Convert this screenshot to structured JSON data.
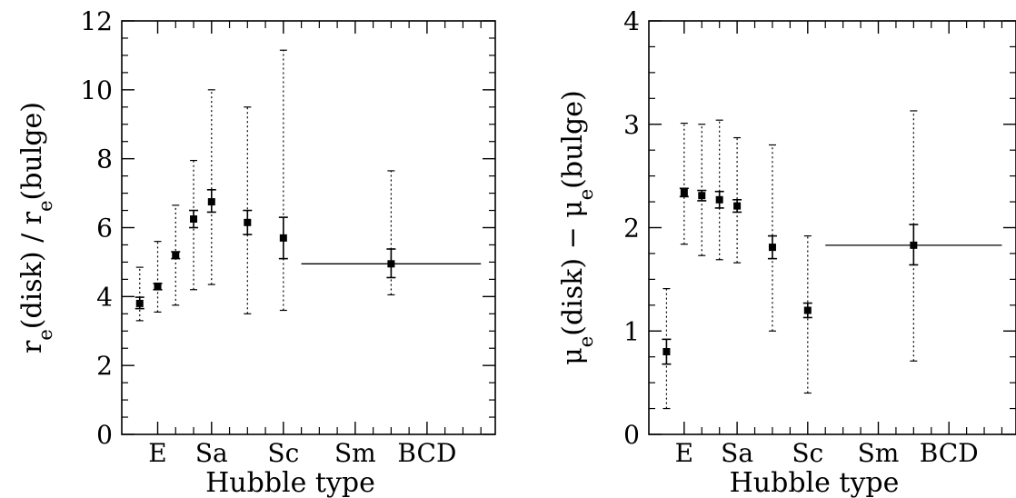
{
  "chart_data": [
    {
      "type": "scatter",
      "xlabel": "Hubble type",
      "ylabel": "r_e(disk) / r_e(bulge)",
      "ylabel_parts": [
        "r",
        "e",
        "(disk)  /  r",
        "e",
        "(bulge)"
      ],
      "ylim": [
        0,
        12
      ],
      "yticks": [
        0,
        2,
        4,
        6,
        8,
        10,
        12
      ],
      "xlim": [
        -1,
        9.4
      ],
      "x_tick_labels": [
        "E",
        "Sa",
        "Sc",
        "Sm",
        "BCD"
      ],
      "x_tick_label_positions": [
        0,
        1.5,
        3.5,
        5.5,
        7.5
      ],
      "x_minor_ticks": [
        0.5,
        1,
        2,
        2.5,
        3,
        4,
        4.5,
        5,
        6,
        6.5,
        7,
        8,
        8.5,
        9
      ],
      "x_major_ticks": [
        0,
        1.5,
        3.5,
        5.5,
        7.5
      ],
      "grid": false,
      "series": [
        {
          "x": [
            -0.5,
            0,
            0.5,
            1,
            1.5,
            2.5,
            3.5,
            6.5
          ],
          "y": [
            3.8,
            4.3,
            5.2,
            6.25,
            6.75,
            6.15,
            5.7,
            4.95
          ],
          "err_low": [
            3.65,
            4.2,
            5.1,
            6.0,
            6.45,
            5.8,
            5.1,
            4.55
          ],
          "err_high": [
            3.98,
            4.38,
            5.3,
            6.5,
            7.1,
            6.5,
            6.3,
            5.38
          ],
          "range_low": [
            3.3,
            3.55,
            3.75,
            4.2,
            4.35,
            3.5,
            3.6,
            4.05
          ],
          "range_high": [
            4.85,
            5.6,
            6.65,
            7.95,
            10.0,
            9.5,
            11.15,
            7.65
          ],
          "x_span": [
            null,
            null,
            null,
            null,
            null,
            null,
            null,
            [
              4.0,
              9.0
            ]
          ]
        }
      ]
    },
    {
      "type": "scatter",
      "xlabel": "Hubble type",
      "ylabel": "μ_e(disk) − μ_e(bulge)",
      "ylabel_parts": [
        "μ",
        "e",
        "(disk)  −  ",
        "μ",
        "e",
        "(bulge)"
      ],
      "ylim": [
        0,
        4
      ],
      "yticks": [
        0,
        1,
        2,
        3,
        4
      ],
      "xlim": [
        -1,
        9.4
      ],
      "x_tick_labels": [
        "E",
        "Sa",
        "Sc",
        "Sm",
        "BCD"
      ],
      "x_tick_label_positions": [
        0,
        1.5,
        3.5,
        5.5,
        7.5
      ],
      "x_minor_ticks": [
        0.5,
        1,
        2,
        2.5,
        3,
        4,
        4.5,
        5,
        6,
        6.5,
        7,
        8,
        8.5,
        9
      ],
      "x_major_ticks": [
        0,
        1.5,
        3.5,
        5.5,
        7.5
      ],
      "grid": false,
      "series": [
        {
          "x": [
            -0.5,
            0,
            0.5,
            1,
            1.5,
            2.5,
            3.5,
            6.5
          ],
          "y": [
            0.8,
            2.34,
            2.31,
            2.27,
            2.21,
            1.81,
            1.2,
            1.83
          ],
          "err_low": [
            0.68,
            2.3,
            2.26,
            2.19,
            2.15,
            1.7,
            1.13,
            1.64
          ],
          "err_high": [
            0.92,
            2.38,
            2.36,
            2.35,
            2.27,
            1.92,
            1.27,
            2.03
          ],
          "range_low": [
            0.25,
            1.84,
            1.73,
            1.69,
            1.66,
            1.0,
            0.4,
            0.71
          ],
          "range_high": [
            1.41,
            3.01,
            3.0,
            3.04,
            2.87,
            2.8,
            1.92,
            3.13
          ],
          "x_span": [
            null,
            null,
            null,
            null,
            null,
            null,
            null,
            [
              4.0,
              9.0
            ]
          ]
        }
      ]
    }
  ]
}
